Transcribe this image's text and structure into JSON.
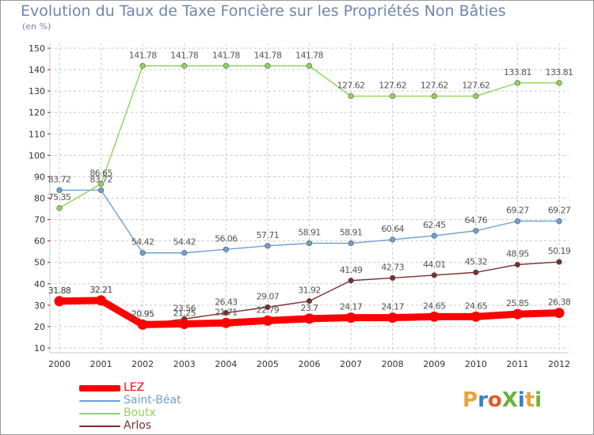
{
  "title": "Evolution du Taux de Taxe Foncière sur les Propriétés Non Bâties",
  "subtitle": "(en %)",
  "logo_text": "ProXiti",
  "chart_data": {
    "type": "line",
    "x": [
      "2000",
      "2001",
      "2002",
      "2003",
      "2004",
      "2005",
      "2006",
      "2007",
      "2008",
      "2009",
      "2010",
      "2011",
      "2012"
    ],
    "ylim": [
      10,
      150
    ],
    "yticks": [
      10,
      20,
      30,
      40,
      50,
      60,
      70,
      80,
      90,
      100,
      110,
      120,
      130,
      140,
      150
    ],
    "grid": true,
    "legend_position": "bottom-left",
    "series": [
      {
        "name": "LEZ",
        "color": "#ff0000",
        "values": [
          31.88,
          32.21,
          20.95,
          21.25,
          21.71,
          22.79,
          23.7,
          24.17,
          24.17,
          24.65,
          24.65,
          25.85,
          26.38
        ],
        "labels": [
          "31.88",
          "32.21",
          "20.95",
          "21.25",
          "21.71",
          "22.79",
          "23.7",
          "24.17",
          "24.17",
          "24.65",
          "24.65",
          "25.85",
          "26.38"
        ]
      },
      {
        "name": "Saint-Béat",
        "color": "#6f9fd0",
        "values": [
          83.72,
          83.72,
          54.42,
          54.42,
          56.06,
          57.71,
          58.91,
          58.91,
          60.64,
          62.45,
          64.76,
          69.27,
          69.27
        ],
        "labels": [
          "83.72",
          "83.72",
          "54.42",
          "54.42",
          "56.06",
          "57.71",
          "58.91",
          "58.91",
          "60.64",
          "62.45",
          "64.76",
          "69.27",
          "69.27"
        ]
      },
      {
        "name": "Boutx",
        "color": "#8fd45a",
        "values": [
          75.35,
          86.65,
          141.78,
          141.78,
          141.78,
          141.78,
          141.78,
          127.62,
          127.62,
          127.62,
          127.62,
          133.81,
          133.81
        ],
        "labels": [
          "75.35",
          "86.65",
          "141.78",
          "141.78",
          "141.78",
          "141.78",
          "141.78",
          "127.62",
          "127.62",
          "127.62",
          "127.62",
          "133.81",
          "133.81"
        ]
      },
      {
        "name": "Arlos",
        "color": "#7a2e2e",
        "values": [
          31.88,
          32.21,
          20.95,
          23.56,
          26.43,
          29.07,
          31.92,
          41.49,
          42.73,
          44.01,
          45.32,
          48.95,
          50.19
        ],
        "labels": [
          "31.88",
          "32.21",
          "20.95",
          "23.56",
          "26.43",
          "29.07",
          "31.92",
          "41.49",
          "42.73",
          "44.01",
          "45.32",
          "48.95",
          "50.19"
        ]
      }
    ]
  },
  "colors": {
    "title": "#6f86ad",
    "grid": "#c8c8c8",
    "tick_text": "#333333",
    "label_text": "#555555"
  }
}
